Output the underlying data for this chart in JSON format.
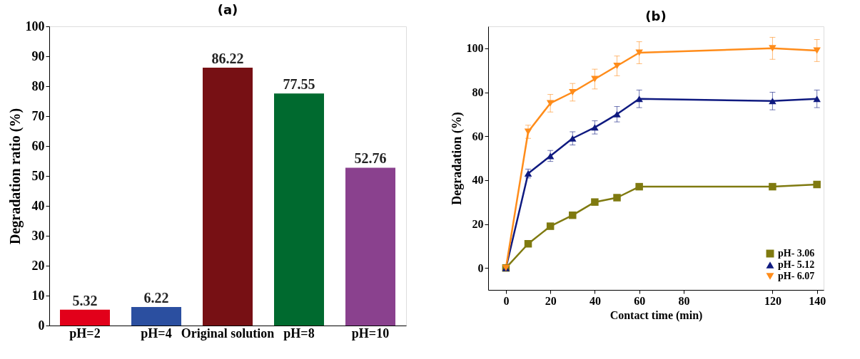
{
  "chart_data": [
    {
      "type": "bar",
      "title": "(a)",
      "ylabel": "Degradation ratio (%)",
      "categories": [
        "pH=2",
        "pH=4",
        "Original solution",
        "pH=8",
        "pH=10"
      ],
      "values": [
        5.32,
        6.22,
        86.22,
        77.55,
        52.76
      ],
      "colors": [
        "#e2001a",
        "#2b4fa0",
        "#771014",
        "#006a2f",
        "#8a418e"
      ],
      "ylim": [
        0,
        100
      ],
      "yticks": [
        0,
        10,
        20,
        30,
        40,
        50,
        60,
        70,
        80,
        90,
        100
      ],
      "data_labels": true,
      "grid": false
    },
    {
      "type": "line",
      "title": "(b)",
      "xlabel": "Contact time (min)",
      "ylabel": "Degradation (%)",
      "x": [
        0,
        10,
        20,
        30,
        40,
        50,
        60,
        120,
        140
      ],
      "series": [
        {
          "name": "pH- 3.06",
          "color": "#7f7a10",
          "marker": "square",
          "values": [
            0,
            11,
            19,
            24,
            30,
            32,
            37,
            37,
            38
          ]
        },
        {
          "name": "pH- 5.12",
          "color": "#0f1a80",
          "marker": "triangle",
          "values": [
            0,
            43,
            51,
            59,
            64,
            70,
            77,
            76,
            77
          ],
          "errors": [
            null,
            2,
            2.5,
            3,
            3,
            3.5,
            4,
            4,
            4
          ]
        },
        {
          "name": "pH- 6.07",
          "color": "#ff8c1a",
          "marker": "triangle-down",
          "values": [
            0,
            62,
            75,
            80,
            86,
            92,
            98,
            100,
            99
          ],
          "errors": [
            null,
            3,
            4,
            4,
            4.5,
            4.5,
            5,
            5,
            5
          ]
        }
      ],
      "xlim": [
        -8,
        143
      ],
      "xticks": [
        0,
        20,
        40,
        60,
        80,
        120,
        140
      ],
      "ylim": [
        -10,
        110
      ],
      "yticks": [
        0,
        20,
        40,
        60,
        80,
        100
      ],
      "legend": "bottom right",
      "grid": false,
      "line_style": "solid"
    }
  ]
}
